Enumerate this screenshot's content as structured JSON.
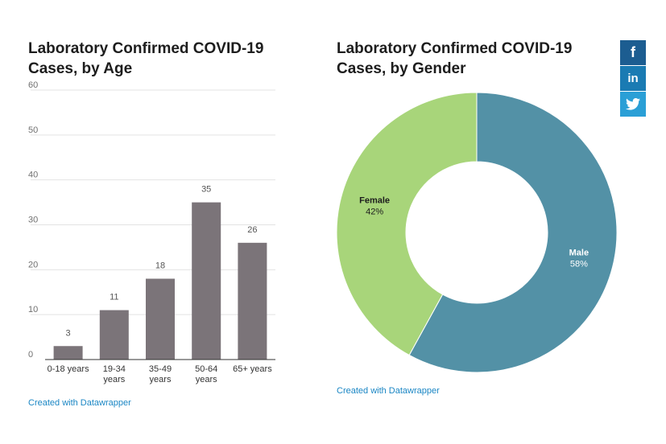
{
  "social": {
    "facebook_label": "f",
    "linkedin_label": "in",
    "twitter_icon": "twitter-bird-icon"
  },
  "credits": {
    "age": "Created with Datawrapper",
    "gender": "Created with Datawrapper"
  },
  "chart_data": [
    {
      "type": "bar",
      "title": "Laboratory Confirmed COVID-19 Cases, by Age",
      "categories": [
        [
          "0-18 years"
        ],
        [
          "19-34",
          "years"
        ],
        [
          "35-49",
          "years"
        ],
        [
          "50-64",
          "years"
        ],
        [
          "65+ years"
        ]
      ],
      "values": [
        3,
        11,
        18,
        35,
        26
      ],
      "data_labels": [
        "3",
        "11",
        "18",
        "35",
        "26"
      ],
      "ylim": [
        0,
        60
      ],
      "yticks": [
        "0",
        "10",
        "20",
        "30",
        "40",
        "50",
        "60"
      ],
      "grid": true,
      "bar_color": "#7b7479"
    },
    {
      "type": "pie",
      "donut": true,
      "title": "Laboratory Confirmed COVID-19 Cases, by Gender",
      "slices": [
        {
          "name": "Male",
          "value": 58,
          "label": "58%",
          "color": "#5391a6"
        },
        {
          "name": "Female",
          "value": 42,
          "label": "42%",
          "color": "#a8d57a"
        }
      ]
    }
  ]
}
